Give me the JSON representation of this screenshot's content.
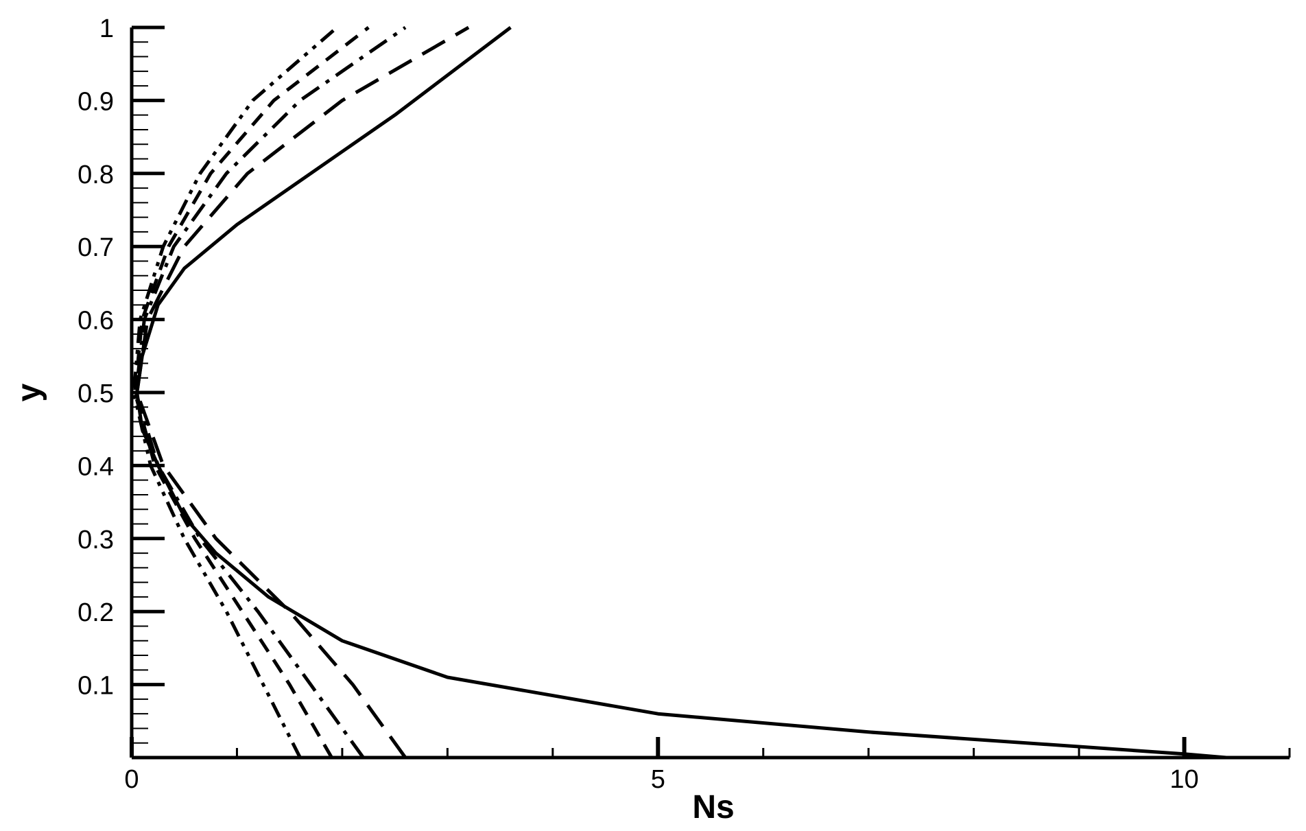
{
  "chart_data": {
    "type": "line",
    "x_label": "Ns",
    "y_label": "y",
    "xlim": [
      0,
      11
    ],
    "ylim": [
      0,
      1
    ],
    "xticks": [
      0,
      5,
      10
    ],
    "yticks": [
      0.1,
      0.2,
      0.3,
      0.4,
      0.5,
      0.6,
      0.7,
      0.8,
      0.9,
      1
    ],
    "x_minor_step": 1,
    "y_minor_step": 0.02,
    "series": [
      {
        "color": "#000000",
        "dash": "solid",
        "x": [
          10.4,
          10,
          7,
          5,
          3,
          2,
          1.3,
          0.8,
          0.5,
          0.25,
          0.1,
          0.05,
          0.1,
          0.25,
          0.5,
          1,
          1.7,
          2.5,
          3.6
        ],
        "y": [
          0,
          0.005,
          0.035,
          0.06,
          0.11,
          0.16,
          0.22,
          0.28,
          0.33,
          0.4,
          0.45,
          0.5,
          0.55,
          0.62,
          0.67,
          0.73,
          0.8,
          0.88,
          1
        ]
      },
      {
        "color": "#000000",
        "dash": "long-dash",
        "x": [
          2.6,
          2.1,
          1.5,
          0.8,
          0.3,
          0.05,
          0.15,
          0.5,
          1.1,
          2.0,
          3.2
        ],
        "y": [
          0,
          0.1,
          0.2,
          0.3,
          0.4,
          0.5,
          0.6,
          0.7,
          0.8,
          0.9,
          1
        ]
      },
      {
        "color": "#000000",
        "dash": "dash-dot",
        "x": [
          2.2,
          1.7,
          1.2,
          0.65,
          0.25,
          0.04,
          0.12,
          0.4,
          0.9,
          1.6,
          2.6
        ],
        "y": [
          0,
          0.1,
          0.2,
          0.3,
          0.4,
          0.5,
          0.6,
          0.7,
          0.8,
          0.9,
          1
        ]
      },
      {
        "color": "#000000",
        "dash": "dash",
        "x": [
          1.9,
          1.5,
          1.05,
          0.6,
          0.22,
          0.03,
          0.1,
          0.35,
          0.75,
          1.35,
          2.25
        ],
        "y": [
          0,
          0.1,
          0.2,
          0.3,
          0.4,
          0.5,
          0.6,
          0.7,
          0.8,
          0.9,
          1
        ]
      },
      {
        "color": "#000000",
        "dash": "dash-dot-dot",
        "x": [
          1.6,
          1.25,
          0.9,
          0.5,
          0.18,
          0.02,
          0.08,
          0.3,
          0.65,
          1.15,
          1.95
        ],
        "y": [
          0,
          0.1,
          0.2,
          0.3,
          0.4,
          0.5,
          0.6,
          0.7,
          0.8,
          0.9,
          1
        ]
      }
    ]
  }
}
